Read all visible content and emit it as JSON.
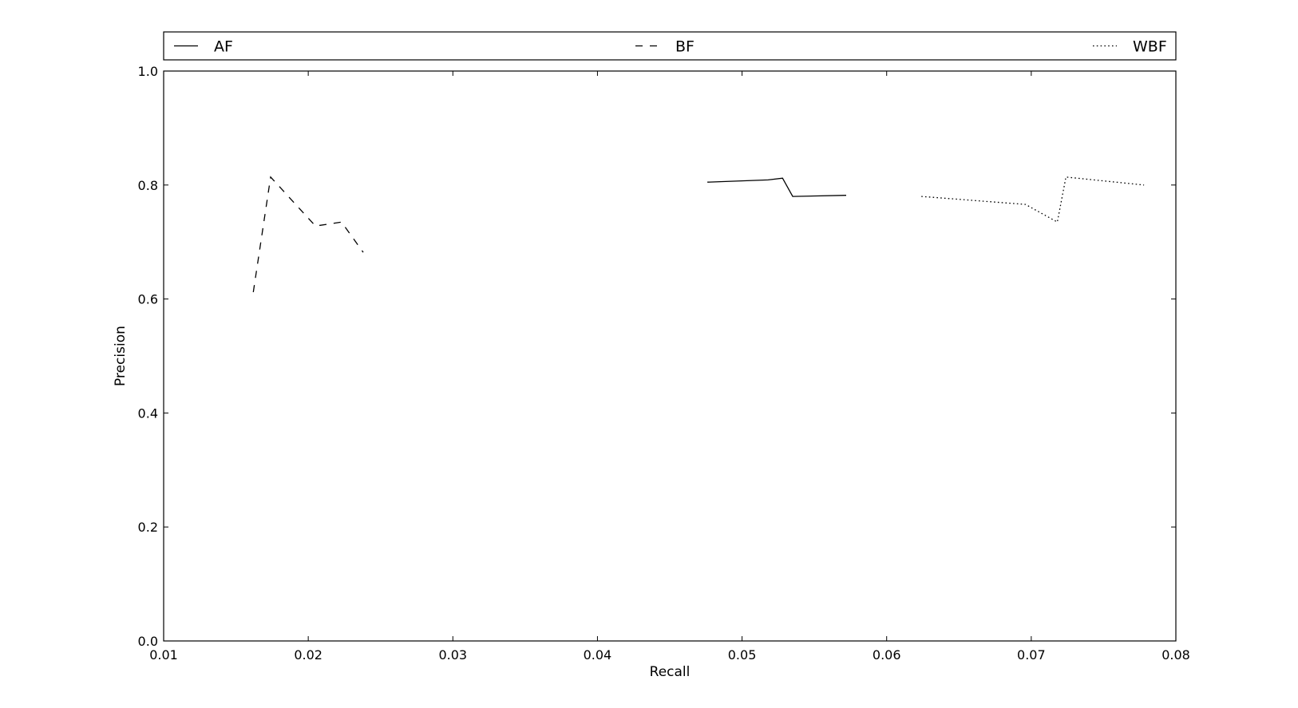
{
  "chart_data": {
    "type": "line",
    "title": "",
    "xlabel": "Recall",
    "ylabel": "Precision",
    "xlim": [
      0.01,
      0.08
    ],
    "ylim": [
      0.0,
      1.0
    ],
    "xticks": [
      0.01,
      0.02,
      0.03,
      0.04,
      0.05,
      0.06,
      0.07,
      0.08
    ],
    "xtick_labels": [
      "0.01",
      "0.02",
      "0.03",
      "0.04",
      "0.05",
      "0.06",
      "0.07",
      "0.08"
    ],
    "yticks": [
      0.0,
      0.2,
      0.4,
      0.6,
      0.8,
      1.0
    ],
    "ytick_labels": [
      "0.0",
      "0.2",
      "0.4",
      "0.6",
      "0.8",
      "1.0"
    ],
    "grid": false,
    "legend_placement": "top, above plot, spanning full width",
    "series": [
      {
        "name": "AF",
        "line_style": "solid",
        "color": "#000000",
        "x": [
          0.0476,
          0.0518,
          0.0528,
          0.0535,
          0.0572
        ],
        "y": [
          0.805,
          0.809,
          0.812,
          0.78,
          0.782
        ]
      },
      {
        "name": "BF",
        "line_style": "dashed",
        "color": "#000000",
        "x": [
          0.0162,
          0.0174,
          0.0205,
          0.0223,
          0.0238
        ],
        "y": [
          0.612,
          0.814,
          0.728,
          0.735,
          0.682
        ]
      },
      {
        "name": "WBF",
        "line_style": "dotted",
        "color": "#000000",
        "x": [
          0.0624,
          0.0696,
          0.0718,
          0.0724,
          0.0778
        ],
        "y": [
          0.78,
          0.766,
          0.735,
          0.814,
          0.8
        ]
      }
    ]
  }
}
